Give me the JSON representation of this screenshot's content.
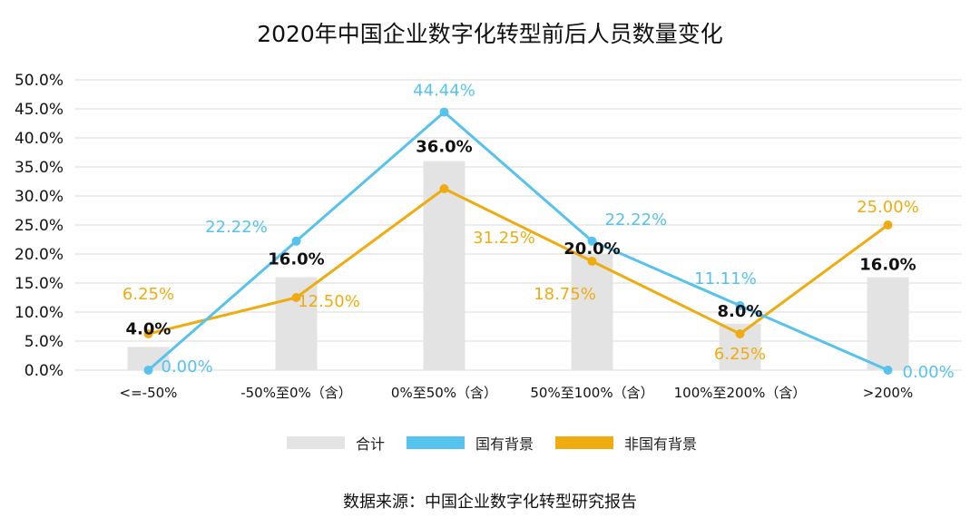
{
  "chart_data": {
    "type": "bar+line",
    "title": "2020年中国企业数字化转型前后人员数量变化",
    "categories": [
      "<=-50%",
      "-50%至0%（含）",
      "0%至50%（含）",
      "50%至100%（含）",
      "100%至200%（含）",
      ">200%"
    ],
    "ylim": [
      0,
      50
    ],
    "yticks": [
      "0.0%",
      "5.0%",
      "10.0%",
      "15.0%",
      "20.0%",
      "25.0%",
      "30.0%",
      "35.0%",
      "40.0%",
      "45.0%",
      "50.0%"
    ],
    "grid": true,
    "legend_position": "bottom",
    "series": [
      {
        "name": "合计",
        "kind": "bar",
        "color": "#e3e3e3",
        "label_color": "#111111",
        "values": [
          4.0,
          16.0,
          36.0,
          20.0,
          8.0,
          16.0
        ],
        "labels": [
          "4.0%",
          "16.0%",
          "36.0%",
          "20.0%",
          "8.0%",
          "16.0%"
        ]
      },
      {
        "name": "国有背景",
        "kind": "line",
        "color": "#56c2ee",
        "label_color": "#56c2ee",
        "values": [
          0.0,
          22.22,
          44.44,
          22.22,
          11.11,
          0.0
        ],
        "labels": [
          "0.00%",
          "22.22%",
          "44.44%",
          "22.22%",
          "11.11%",
          "0.00%"
        ]
      },
      {
        "name": "非国有背景",
        "kind": "line",
        "color": "#eeac10",
        "label_color": "#eeac10",
        "values": [
          6.25,
          12.5,
          31.25,
          18.75,
          6.25,
          25.0
        ],
        "labels": [
          "6.25%",
          "12.50%",
          "31.25%",
          "18.75%",
          "6.25%",
          "25.00%"
        ]
      }
    ]
  },
  "legend": [
    {
      "label": "合计",
      "color": "#e3e3e3"
    },
    {
      "label": "国有背景",
      "color": "#56c2ee"
    },
    {
      "label": "非国有背景",
      "color": "#eeac10"
    }
  ],
  "source": "数据来源：中国企业数字化转型研究报告"
}
